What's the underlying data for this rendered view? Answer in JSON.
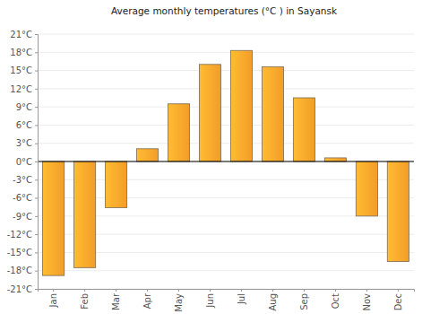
{
  "chart_data": {
    "type": "bar",
    "title": "Average monthly temperatures (°C ) in Sayansk",
    "categories": [
      "Jan",
      "Feb",
      "Mar",
      "Apr",
      "May",
      "Jun",
      "Jul",
      "Aug",
      "Sep",
      "Oct",
      "Nov",
      "Dec"
    ],
    "values": [
      -18.8,
      -17.5,
      -7.6,
      2.1,
      9.5,
      16,
      18.3,
      15.6,
      10.5,
      0.6,
      -9,
      -16.5
    ],
    "color": "#ffa62b",
    "ylim": [
      -21,
      21
    ],
    "yticks": [
      {
        "value": -21,
        "label": "-21°C"
      },
      {
        "value": -18,
        "label": "-18°C"
      },
      {
        "value": -15,
        "label": "-15°C"
      },
      {
        "value": -12,
        "label": "-12°C"
      },
      {
        "value": -9,
        "label": "-9°C"
      },
      {
        "value": -6,
        "label": "-6°C"
      },
      {
        "value": -3,
        "label": "-3°C"
      },
      {
        "value": 0,
        "label": "0°C"
      },
      {
        "value": 3,
        "label": "3°C"
      },
      {
        "value": 6,
        "label": "6°C"
      },
      {
        "value": 9,
        "label": "9°C"
      },
      {
        "value": 12,
        "label": "12°C"
      },
      {
        "value": 15,
        "label": "15°C"
      },
      {
        "value": 18,
        "label": "18°C"
      },
      {
        "value": 21,
        "label": "21°C"
      }
    ],
    "grid": true
  }
}
